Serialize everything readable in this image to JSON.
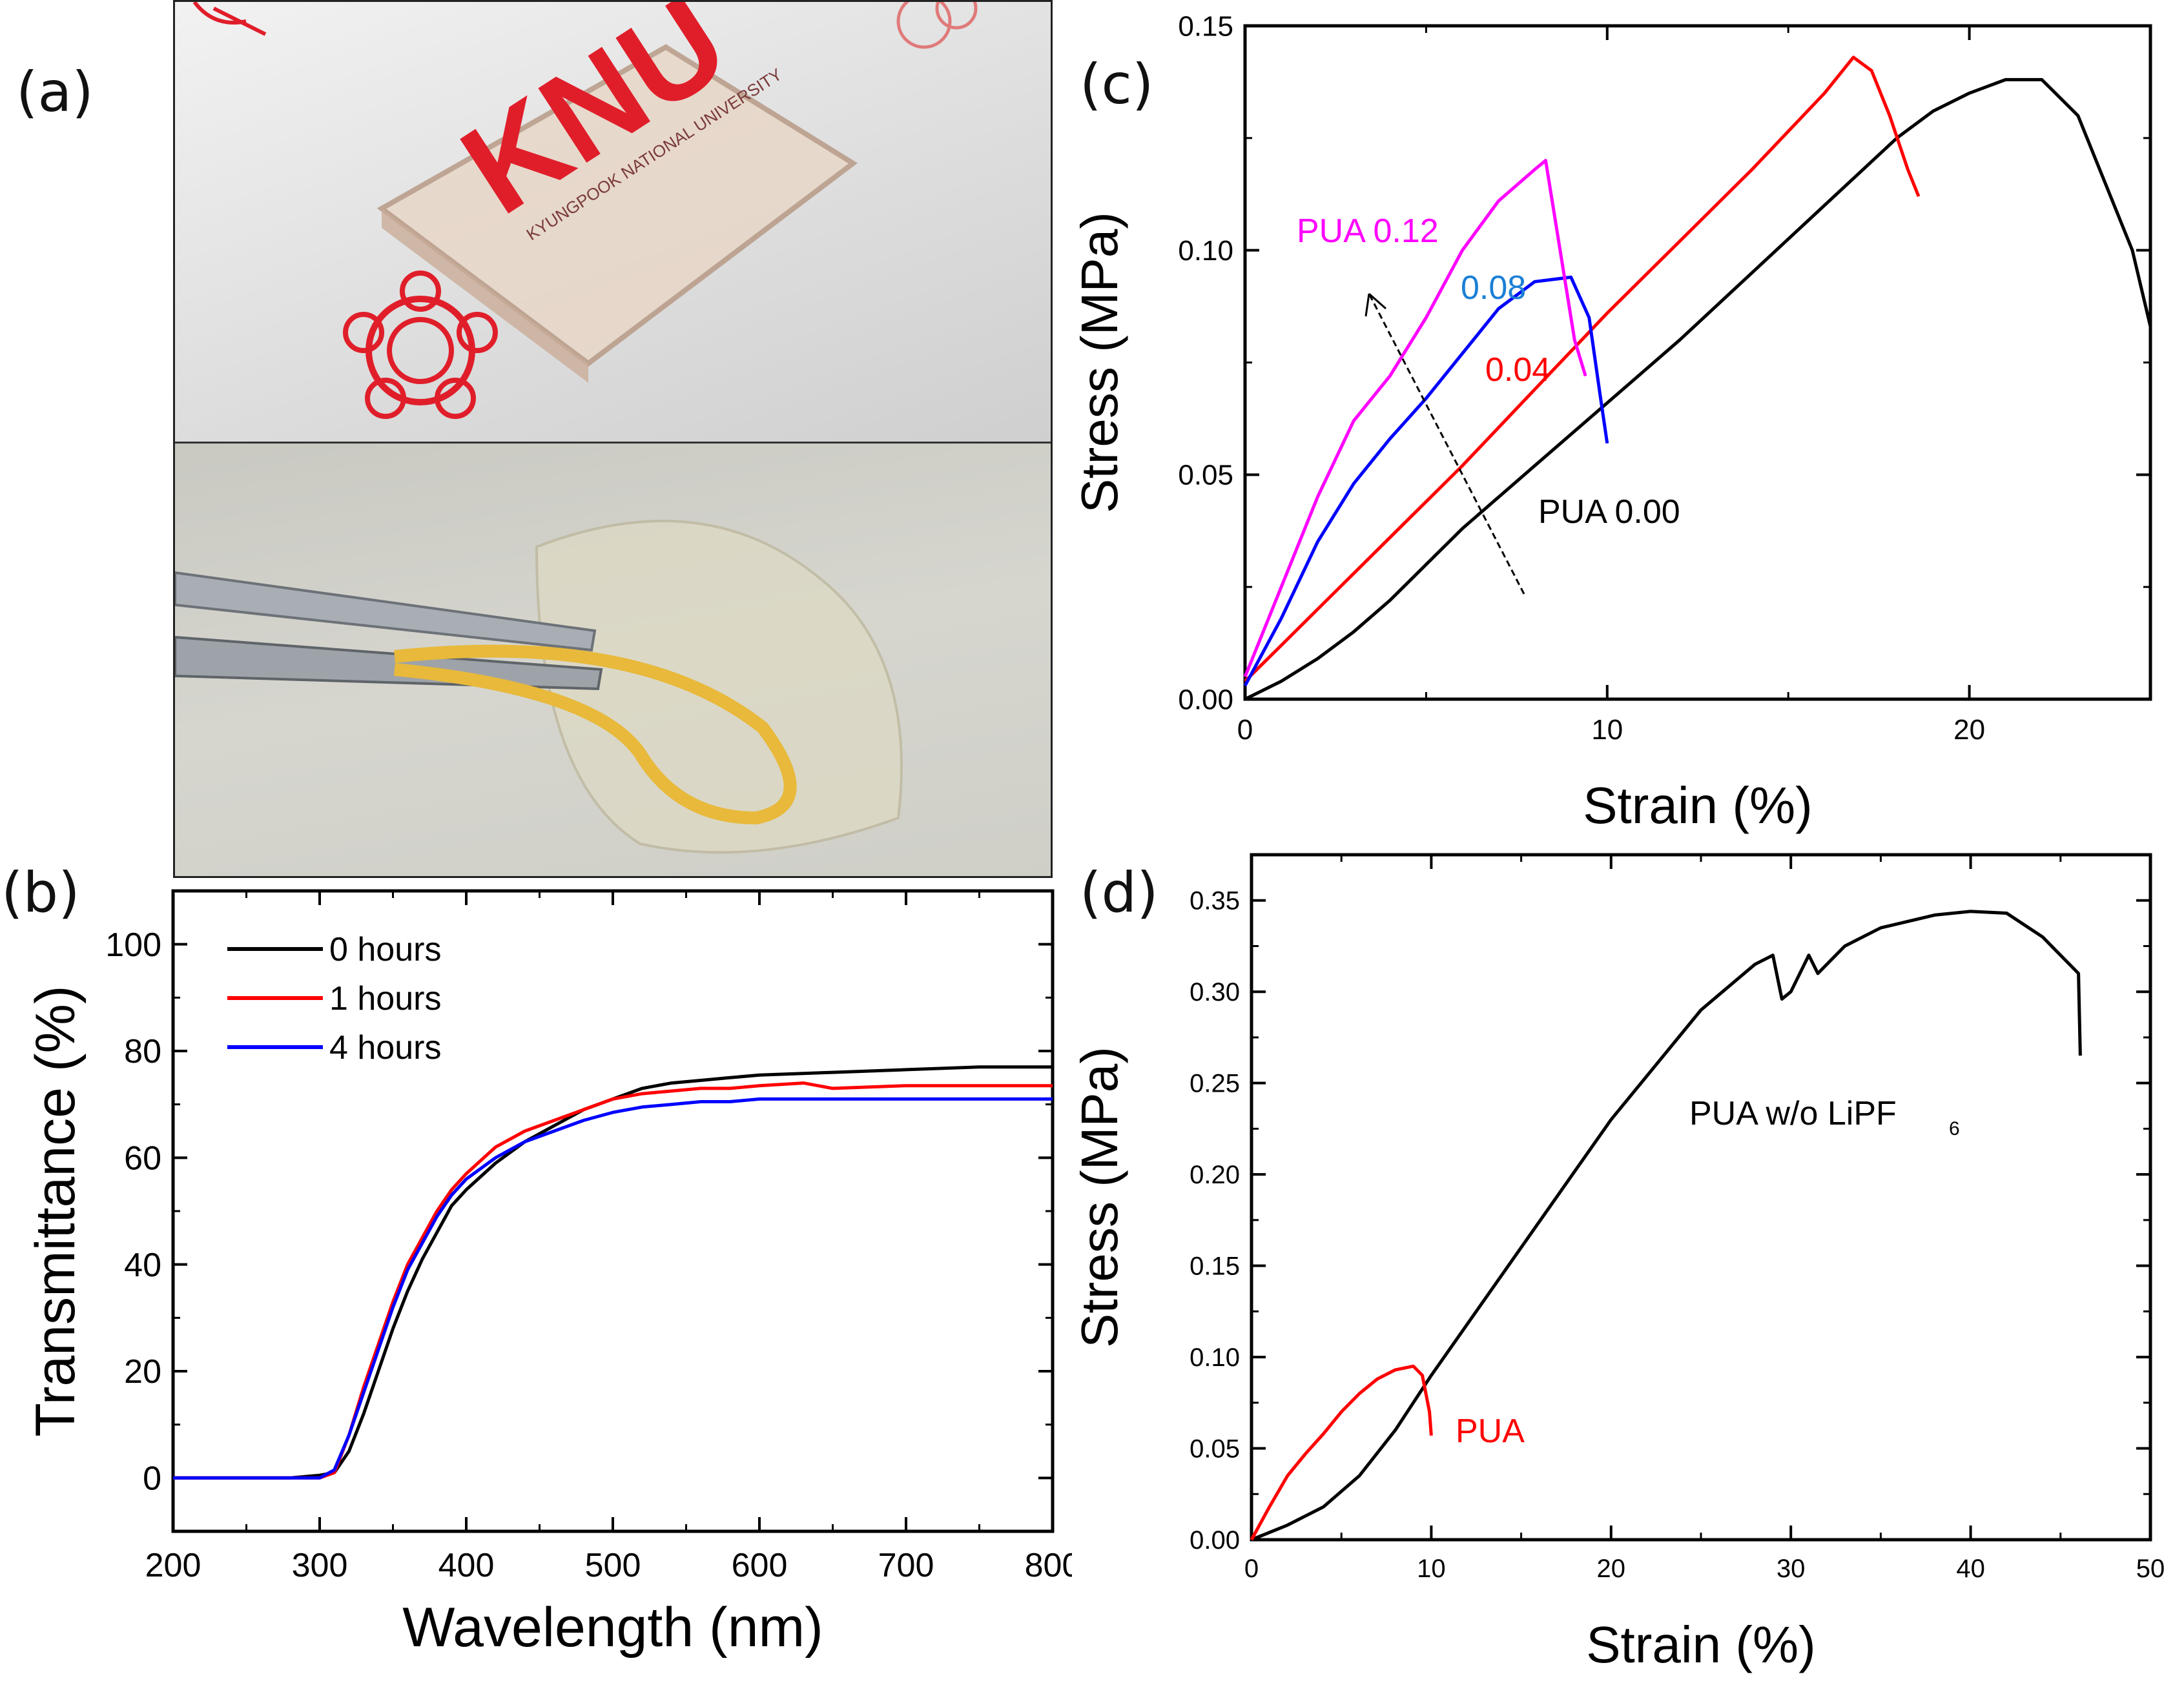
{
  "panels": {
    "a": "(a)",
    "b": "(b)",
    "c": "(c)",
    "d": "(d)"
  },
  "photo": {
    "logo_text": "KNU",
    "logo_subtext": "KYUNGPOOK NATIONAL UNIVERSITY"
  },
  "chart_data": [
    {
      "id": "b",
      "type": "line",
      "xlabel": "Wavelength (nm)",
      "ylabel": "Transmittance (%)",
      "xlim": [
        200,
        800
      ],
      "ylim": [
        -10,
        110
      ],
      "xticks": [
        "200",
        "300",
        "400",
        "500",
        "600",
        "700",
        "800"
      ],
      "yticks": [
        "0",
        "20",
        "40",
        "60",
        "80",
        "100"
      ],
      "legend": "top-left",
      "series": [
        {
          "name": "0 hours",
          "color": "#000000",
          "x": [
            200,
            280,
            300,
            310,
            320,
            330,
            340,
            350,
            360,
            370,
            380,
            390,
            400,
            420,
            440,
            460,
            480,
            500,
            520,
            540,
            560,
            580,
            600,
            650,
            700,
            750,
            800
          ],
          "y": [
            0,
            0,
            0.5,
            1,
            5,
            12,
            20,
            28,
            35,
            41,
            46,
            51,
            54,
            59,
            63,
            66,
            69,
            71,
            73,
            74,
            74.5,
            75,
            75.5,
            76,
            76.5,
            77,
            77
          ]
        },
        {
          "name": "1 hours",
          "color": "#ff0000",
          "x": [
            200,
            280,
            300,
            310,
            320,
            330,
            340,
            350,
            360,
            370,
            380,
            390,
            400,
            420,
            440,
            460,
            480,
            500,
            520,
            540,
            560,
            580,
            600,
            630,
            650,
            700,
            750,
            800
          ],
          "y": [
            0,
            0,
            0,
            1,
            8,
            17,
            25,
            33,
            40,
            45,
            50,
            54,
            57,
            62,
            65,
            67,
            69,
            71,
            72,
            72.5,
            73,
            73,
            73.5,
            74,
            73,
            73.5,
            73.5,
            73.5
          ]
        },
        {
          "name": "4 hours",
          "color": "#0000ff",
          "x": [
            200,
            280,
            300,
            310,
            320,
            330,
            340,
            350,
            360,
            370,
            380,
            390,
            400,
            420,
            440,
            460,
            480,
            500,
            520,
            540,
            560,
            580,
            600,
            650,
            700,
            750,
            800
          ],
          "y": [
            0,
            0,
            0,
            1.5,
            8,
            16,
            24,
            32,
            39,
            44,
            49,
            53,
            56,
            60,
            63,
            65,
            67,
            68.5,
            69.5,
            70,
            70.5,
            70.5,
            71,
            71,
            71,
            71,
            71
          ]
        }
      ]
    },
    {
      "id": "c",
      "type": "line",
      "xlabel": "Strain (%)",
      "ylabel": "Stress (MPa)",
      "xlim": [
        0,
        25
      ],
      "ylim": [
        0,
        0.15
      ],
      "xticks": [
        "0",
        "10",
        "20"
      ],
      "yticks": [
        "0.00",
        "0.05",
        "0.10",
        "0.15"
      ],
      "series": [
        {
          "name": "PUA 0.00",
          "label": "PUA 0.00",
          "color": "#000000",
          "x": [
            0,
            1,
            2,
            3,
            4,
            5,
            6,
            8,
            10,
            12,
            14,
            16,
            18,
            19,
            20,
            21,
            22,
            23,
            24,
            24.5,
            25
          ],
          "y": [
            0,
            0.004,
            0.009,
            0.015,
            0.022,
            0.03,
            0.038,
            0.052,
            0.066,
            0.08,
            0.095,
            0.11,
            0.125,
            0.131,
            0.135,
            0.138,
            0.138,
            0.13,
            0.11,
            0.1,
            0.083
          ]
        },
        {
          "name": "PUA 0.04",
          "label": "0.04",
          "color": "#ff0000",
          "x": [
            0,
            1,
            2,
            4,
            6,
            8,
            10,
            12,
            14,
            16,
            16.8,
            17.3,
            17.8,
            18.3,
            18.6
          ],
          "y": [
            0.004,
            0.012,
            0.02,
            0.036,
            0.052,
            0.069,
            0.086,
            0.102,
            0.118,
            0.135,
            0.143,
            0.14,
            0.13,
            0.118,
            0.112
          ]
        },
        {
          "name": "PUA 0.08",
          "label": "0.08",
          "color": "#0000ff",
          "x": [
            0,
            1,
            2,
            3,
            4,
            5,
            6,
            7,
            8,
            9,
            9.5,
            9.8,
            10
          ],
          "y": [
            0.003,
            0.018,
            0.035,
            0.048,
            0.058,
            0.067,
            0.077,
            0.087,
            0.093,
            0.094,
            0.085,
            0.068,
            0.057
          ]
        },
        {
          "name": "PUA 0.12",
          "label": "PUA 0.12",
          "color": "#ff00ff",
          "x": [
            0,
            1,
            2,
            3,
            4,
            5,
            6,
            7,
            8,
            8.3,
            8.7,
            9.1,
            9.4
          ],
          "y": [
            0.005,
            0.025,
            0.045,
            0.062,
            0.072,
            0.085,
            0.1,
            0.111,
            0.118,
            0.12,
            0.1,
            0.08,
            0.072
          ]
        }
      ],
      "annotations": [
        "PUA 0.12",
        "0.08",
        "0.04",
        "PUA 0.00"
      ]
    },
    {
      "id": "d",
      "type": "line",
      "xlabel": "Strain (%)",
      "ylabel": "Stress (MPa)",
      "xlim": [
        0,
        50
      ],
      "ylim": [
        0,
        0.375
      ],
      "xticks": [
        "0",
        "10",
        "20",
        "30",
        "40",
        "50"
      ],
      "yticks": [
        "0.00",
        "0.05",
        "0.10",
        "0.15",
        "0.20",
        "0.25",
        "0.30",
        "0.35"
      ],
      "series": [
        {
          "name": "PUA w/o LiPF6",
          "label_main": "PUA w/o LiPF",
          "label_sub": "6",
          "color": "#000000",
          "x": [
            0,
            2,
            4,
            6,
            8,
            10,
            15,
            20,
            25,
            28,
            29,
            29.5,
            30,
            31,
            31.5,
            32,
            33,
            35,
            38,
            40,
            42,
            44,
            45,
            46,
            46.1
          ],
          "y": [
            0,
            0.008,
            0.018,
            0.035,
            0.06,
            0.09,
            0.16,
            0.23,
            0.29,
            0.315,
            0.32,
            0.296,
            0.3,
            0.32,
            0.31,
            0.315,
            0.325,
            0.335,
            0.342,
            0.344,
            0.343,
            0.33,
            0.32,
            0.31,
            0.265
          ]
        },
        {
          "name": "PUA",
          "label": "PUA",
          "color": "#ff0000",
          "x": [
            0,
            1,
            2,
            3,
            4,
            5,
            6,
            7,
            8,
            9,
            9.5,
            9.9,
            10
          ],
          "y": [
            0,
            0.018,
            0.035,
            0.047,
            0.058,
            0.07,
            0.08,
            0.088,
            0.093,
            0.095,
            0.09,
            0.07,
            0.057
          ]
        }
      ]
    }
  ]
}
